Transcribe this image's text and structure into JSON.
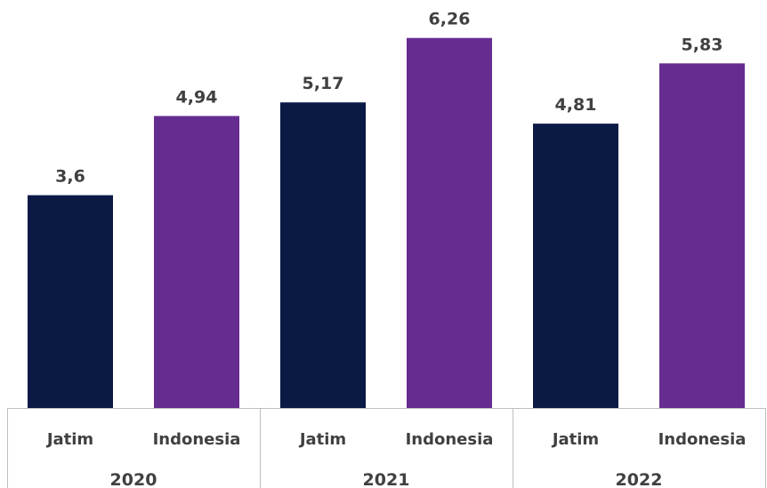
{
  "chart_data": {
    "type": "bar",
    "groups": [
      {
        "label": "2020",
        "bars": [
          {
            "category": "Jatim",
            "value": 3.6,
            "value_label": "3,6",
            "color": "#0b1a45"
          },
          {
            "category": "Indonesia",
            "value": 4.94,
            "value_label": "4,94",
            "color": "#662d91"
          }
        ]
      },
      {
        "label": "2021",
        "bars": [
          {
            "category": "Jatim",
            "value": 5.17,
            "value_label": "5,17",
            "color": "#0b1a45"
          },
          {
            "category": "Indonesia",
            "value": 6.26,
            "value_label": "6,26",
            "color": "#662d91"
          }
        ]
      },
      {
        "label": "2022",
        "bars": [
          {
            "category": "Jatim",
            "value": 4.81,
            "value_label": "4,81",
            "color": "#0b1a45"
          },
          {
            "category": "Indonesia",
            "value": 5.83,
            "value_label": "5,83",
            "color": "#662d91"
          }
        ]
      }
    ],
    "ylim": [
      0,
      7
    ],
    "grid": false,
    "legend": "none"
  }
}
